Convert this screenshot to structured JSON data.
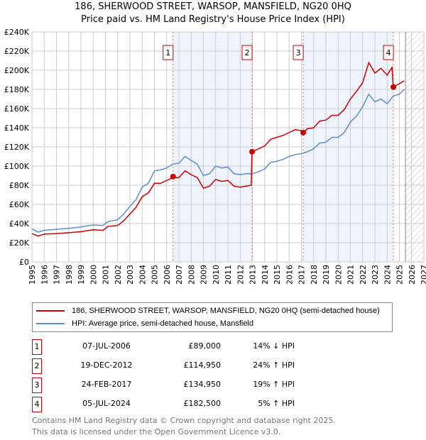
{
  "title": "186, SHERWOOD STREET, WARSOP, MANSFIELD, NG20 0HQ",
  "subtitle": "Price paid vs. HM Land Registry's House Price Index (HPI)",
  "chart_data": {
    "type": "line",
    "title": "186, SHERWOOD STREET, WARSOP, MANSFIELD, NG20 0HQ — Price paid vs. HM Land Registry's House Price Index (HPI)",
    "xlim": [
      1995,
      2027
    ],
    "ylim": [
      0,
      240000
    ],
    "xticks": [
      "1995",
      "1996",
      "1997",
      "1998",
      "1999",
      "2000",
      "2001",
      "2002",
      "2003",
      "2004",
      "2005",
      "2006",
      "2007",
      "2008",
      "2009",
      "2010",
      "2011",
      "2012",
      "2013",
      "2014",
      "2015",
      "2016",
      "2017",
      "2018",
      "2019",
      "2020",
      "2021",
      "2022",
      "2023",
      "2024",
      "2025",
      "2026",
      "2027"
    ],
    "yticks": [
      "£0",
      "£20K",
      "£40K",
      "£60K",
      "£80K",
      "£100K",
      "£120K",
      "£140K",
      "£160K",
      "£180K",
      "£200K",
      "£220K",
      "£240K"
    ],
    "grid": true,
    "forecast_start": 2025.5,
    "colors": {
      "price": "#cc0000",
      "hpi": "#5b8fd0",
      "shade": "#eef3fc",
      "marker": "#ff6666"
    },
    "series": [
      {
        "name": "186, SHERWOOD STREET, WARSOP, MANSFIELD, NG20 0HQ (semi-detached house)",
        "color": "#cc0000",
        "x": [
          1995,
          1995.5,
          1996,
          1997,
          1998,
          1999,
          2000,
          2000.8,
          2001.2,
          2002,
          2002.5,
          2003,
          2003.5,
          2004,
          2004.5,
          2005,
          2005.5,
          2006,
          2006.5,
          2007,
          2007.5,
          2008,
          2008.5,
          2009,
          2009.5,
          2010,
          2010.5,
          2011,
          2011.5,
          2012,
          2012.9,
          2012.97,
          2013.5,
          2014,
          2014.5,
          2015,
          2015.5,
          2016,
          2016.5,
          2017,
          2017.15,
          2017.5,
          2018,
          2018.5,
          2019,
          2019.5,
          2020,
          2020.5,
          2021,
          2021.5,
          2022,
          2022.5,
          2023,
          2023.5,
          2024,
          2024.4,
          2024.5,
          2025,
          2025.4
        ],
        "y": [
          29500,
          27000,
          29000,
          29500,
          30500,
          31500,
          33500,
          33000,
          37000,
          38000,
          43000,
          50000,
          57000,
          68000,
          72000,
          82000,
          82000,
          85000,
          88000,
          88000,
          95000,
          91000,
          88000,
          77000,
          79000,
          86000,
          84000,
          85000,
          79000,
          78000,
          80000,
          115000,
          118000,
          121000,
          128000,
          130000,
          132000,
          135000,
          138000,
          137000,
          135000,
          139000,
          140000,
          147000,
          148000,
          153000,
          153000,
          159000,
          170000,
          178000,
          187000,
          208000,
          197000,
          202000,
          195000,
          203000,
          182500,
          186000,
          189000
        ]
      },
      {
        "name": "HPI: Average price, semi-detached house, Mansfield",
        "color": "#5b8fd0",
        "x": [
          1995,
          1995.5,
          1996,
          1997,
          1998,
          1999,
          2000,
          2000.8,
          2001.2,
          2002,
          2002.5,
          2003,
          2003.5,
          2004,
          2004.5,
          2005,
          2005.5,
          2006,
          2006.5,
          2007,
          2007.5,
          2008,
          2008.5,
          2009,
          2009.5,
          2010,
          2010.5,
          2011,
          2011.5,
          2012,
          2012.5,
          2013,
          2013.5,
          2014,
          2014.5,
          2015,
          2015.5,
          2016,
          2016.5,
          2017,
          2017.5,
          2018,
          2018.5,
          2019,
          2019.5,
          2020,
          2020.5,
          2021,
          2021.5,
          2022,
          2022.5,
          2023,
          2023.5,
          2024,
          2024.5,
          2025,
          2025.4
        ],
        "y": [
          34500,
          31000,
          33000,
          34000,
          35000,
          36500,
          38500,
          38000,
          42000,
          44000,
          50000,
          58000,
          65000,
          78000,
          82000,
          95000,
          96000,
          98000,
          102000,
          103000,
          110000,
          106000,
          102000,
          90000,
          92000,
          100000,
          98000,
          99000,
          92000,
          91000,
          92000,
          92000,
          94000,
          97000,
          104000,
          105000,
          107000,
          110000,
          112000,
          113000,
          115000,
          118000,
          124000,
          125000,
          130000,
          130000,
          135000,
          146000,
          152000,
          162000,
          175000,
          167000,
          170000,
          165000,
          173000,
          175000,
          180000
        ]
      }
    ],
    "sales": [
      {
        "label": "1",
        "x": 2006.52,
        "y": 89000
      },
      {
        "label": "2",
        "x": 2012.97,
        "y": 114950
      },
      {
        "label": "3",
        "x": 2017.15,
        "y": 134950
      },
      {
        "label": "4",
        "x": 2024.51,
        "y": 182500
      }
    ]
  },
  "legend": {
    "price": "186, SHERWOOD STREET, WARSOP, MANSFIELD, NG20 0HQ (semi-detached house)",
    "hpi": "HPI: Average price, semi-detached house, Mansfield"
  },
  "table": [
    {
      "num": "1",
      "date": "07-JUL-2006",
      "price": "£89,000",
      "hpi": "14% ↓ HPI"
    },
    {
      "num": "2",
      "date": "19-DEC-2012",
      "price": "£114,950",
      "hpi": "24% ↑ HPI"
    },
    {
      "num": "3",
      "date": "24-FEB-2017",
      "price": "£134,950",
      "hpi": "19% ↑ HPI"
    },
    {
      "num": "4",
      "date": "05-JUL-2024",
      "price": "£182,500",
      "hpi": "5% ↑ HPI"
    }
  ],
  "footer": [
    "Contains HM Land Registry data © Crown copyright and database right 2025.",
    "This data is licensed under the Open Government Licence v3.0."
  ]
}
